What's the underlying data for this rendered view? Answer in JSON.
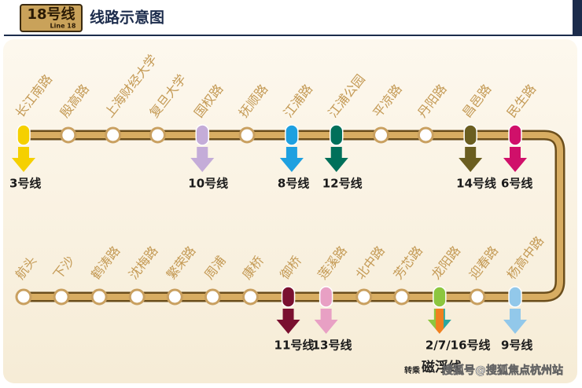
{
  "header": {
    "badge": "18号线",
    "badge_en": "Line 18",
    "title": "线路示意图"
  },
  "top_row": [
    {
      "name": "长江南路",
      "transfer": "3号线",
      "color": "#f5d000"
    },
    {
      "name": "殷高路"
    },
    {
      "name": "上海财经大学"
    },
    {
      "name": "复旦大学"
    },
    {
      "name": "国权路",
      "transfer": "10号线",
      "color": "#c4acd8"
    },
    {
      "name": "抚顺路"
    },
    {
      "name": "江浦路",
      "transfer": "8号线",
      "color": "#1ea0e0"
    },
    {
      "name": "江浦公园",
      "transfer": "12号线",
      "color": "#00705a"
    },
    {
      "name": "平凉路"
    },
    {
      "name": "丹阳路"
    },
    {
      "name": "昌邑路",
      "transfer": "14号线",
      "color": "#6b5e20"
    },
    {
      "name": "民生路",
      "transfer": "6号线",
      "color": "#d0106a"
    }
  ],
  "bottom_row": [
    {
      "name": "航头"
    },
    {
      "name": "下沙"
    },
    {
      "name": "鹤涛路"
    },
    {
      "name": "沈梅路"
    },
    {
      "name": "繁荣路"
    },
    {
      "name": "周浦"
    },
    {
      "name": "康桥"
    },
    {
      "name": "御桥",
      "transfer": "11号线",
      "color": "#7a1030"
    },
    {
      "name": "莲溪路",
      "transfer": "13号线",
      "color": "#e8a0c4"
    },
    {
      "name": "北中路"
    },
    {
      "name": "芳芯路"
    },
    {
      "name": "龙阳路",
      "transfer": "2/7/16号线",
      "colors": [
        "#8cc63f",
        "#f08020",
        "#2aa8a0"
      ]
    },
    {
      "name": "迎春路"
    },
    {
      "name": "杨高中路",
      "transfer": "9号线",
      "color": "#92c8ea"
    }
  ],
  "maglev": {
    "prefix": "转乘",
    "name": "磁浮线"
  },
  "watermark": "搜狐号@搜狐焦点杭州站"
}
